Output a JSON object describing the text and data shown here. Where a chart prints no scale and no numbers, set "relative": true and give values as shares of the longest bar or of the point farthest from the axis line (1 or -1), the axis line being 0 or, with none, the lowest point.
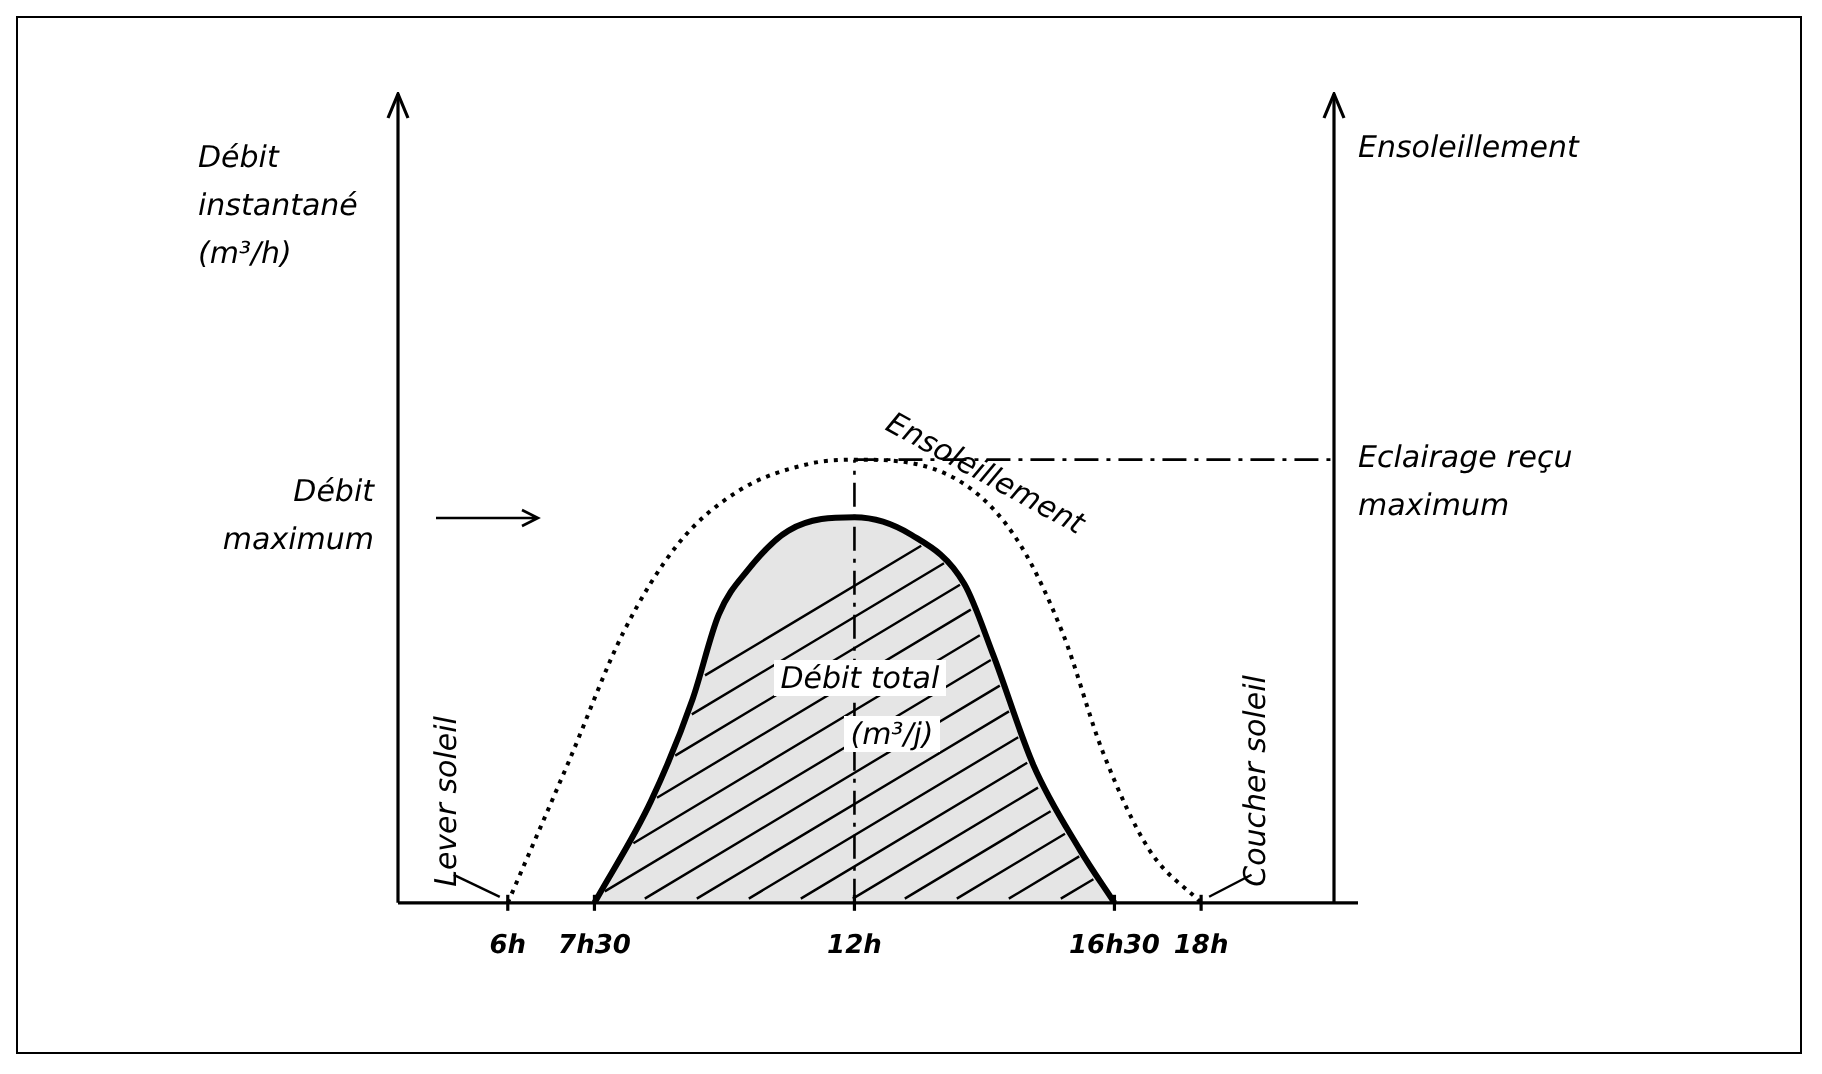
{
  "chart_data": {
    "type": "line",
    "relative": true,
    "xlim": [
      4.1,
      20.3
    ],
    "xticks": [
      {
        "value": 6,
        "label": "6h"
      },
      {
        "value": 7.5,
        "label": "7h30"
      },
      {
        "value": 12,
        "label": "12h"
      },
      {
        "value": 16.5,
        "label": "16h30"
      },
      {
        "value": 18,
        "label": "18h"
      }
    ],
    "series": [
      {
        "type": "line",
        "color": "#000000",
        "line_style": "dotted",
        "x": [
          6,
          7.06,
          8.0,
          8.95,
          10.0,
          11.2,
          12,
          13.55,
          14.76,
          15.6,
          16.3,
          17.1,
          18
        ],
        "values": [
          0,
          0.32,
          0.61,
          0.81,
          0.93,
          0.99,
          1,
          0.97,
          0.83,
          0.61,
          0.34,
          0.12,
          0
        ]
      },
      {
        "type": "area",
        "color": "#000000",
        "line_style": "solid",
        "x": [
          7.5,
          8.48,
          9.2,
          9.65,
          10.15,
          10.86,
          12,
          12.99,
          13.9,
          14.4,
          15.1,
          15.9,
          16.5
        ],
        "values": [
          0,
          0.23,
          0.46,
          0.65,
          0.75,
          0.84,
          0.87,
          0.83,
          0.72,
          0.56,
          0.31,
          0.12,
          0
        ]
      }
    ],
    "ref_lines": [
      {
        "axis": "y",
        "value": 0.87,
        "label": "Débit maximum"
      },
      {
        "axis": "y",
        "value": 1,
        "label": "Eclairage reçu maximum",
        "line_style": "dashdot"
      },
      {
        "axis": "x",
        "value": 12,
        "line_style": "dashdot"
      }
    ],
    "annotations": [
      "Débit instantané (m³/h)",
      "Ensoleillement",
      {
        "text": "Lever soleil",
        "x": 6,
        "y": 0
      },
      {
        "text": "Coucher soleil",
        "x": 18,
        "y": 0
      },
      {
        "text": "Ensoleillement",
        "x": 13.55,
        "y": 0.97
      },
      {
        "text": "Débit total (m³/j)",
        "x": 12,
        "y": 0.45
      }
    ],
    "tick_labels": "x",
    "grid": false,
    "legend": false,
    "marker": "none"
  }
}
